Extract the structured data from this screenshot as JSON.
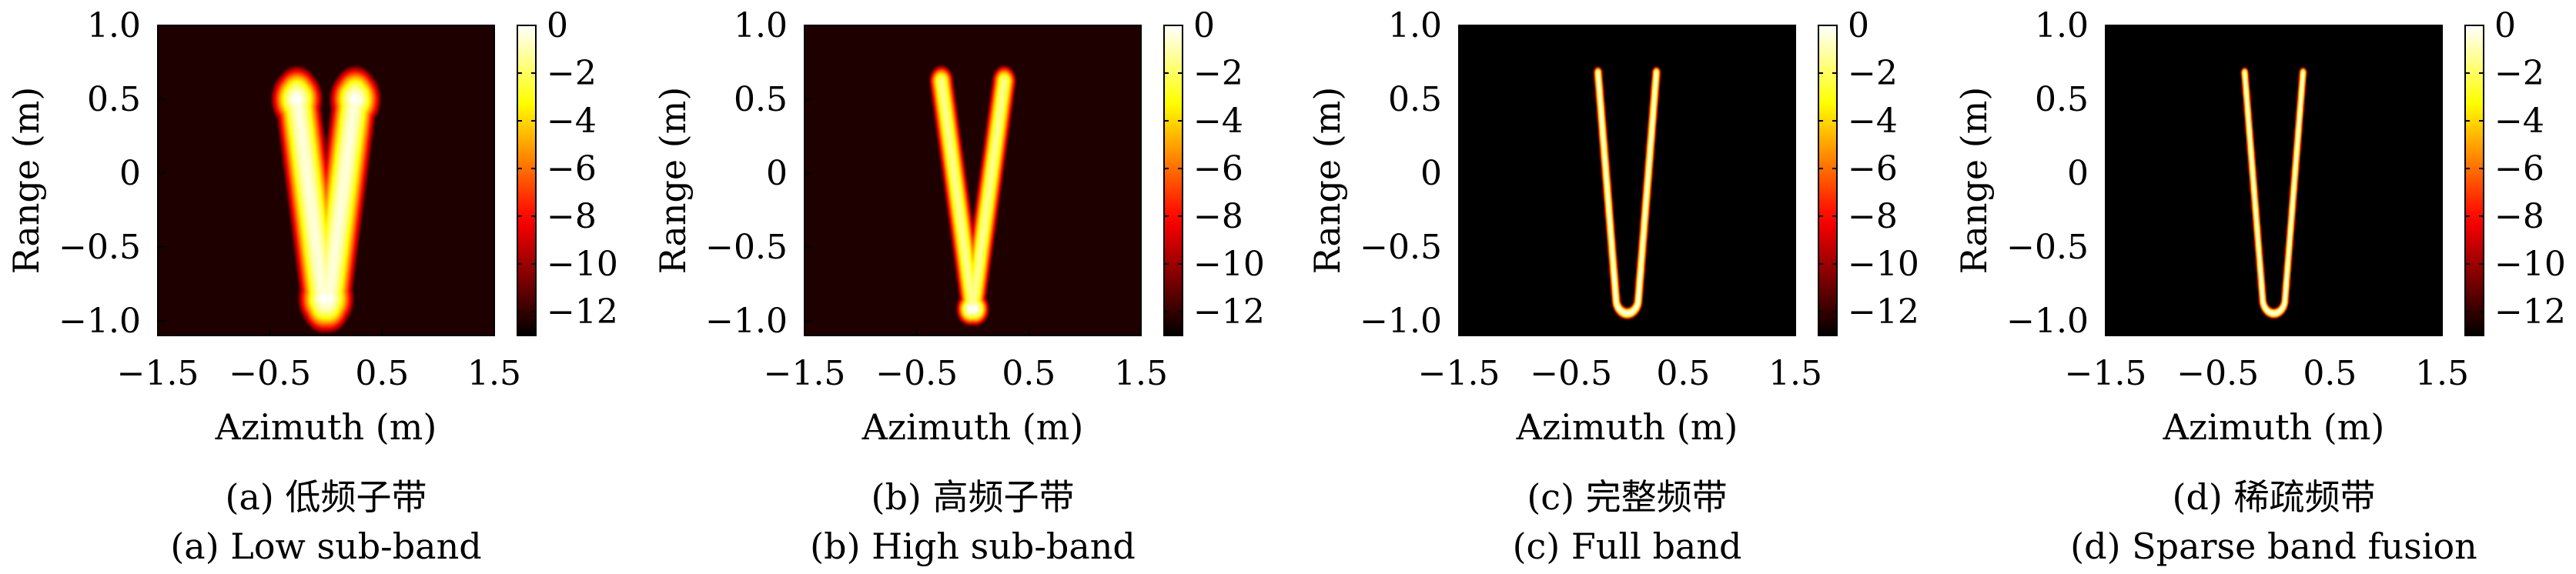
{
  "chart_data": [
    {
      "type": "heatmap",
      "caption_zh": "(a) 低频子带",
      "caption_en": "(a) Low sub-band",
      "xlabel": "Azimuth (m)",
      "ylabel": "Range (m)",
      "xlim": [
        -1.5,
        1.5
      ],
      "ylim": [
        -1.1,
        1.0
      ],
      "xticks": [
        "-1.5",
        "-0.5",
        "0.5",
        "1.5"
      ],
      "yticks": [
        "1.0",
        "0.5",
        "0",
        "-0.5",
        "-1.0"
      ],
      "colorbar": {
        "range": [
          -13,
          0
        ],
        "ticks": [
          "0",
          "-2",
          "-4",
          "-6",
          "-8",
          "-10",
          "-12"
        ]
      },
      "shape": {
        "half_width_top": 0.26,
        "half_width_bottom": 0.02,
        "y_top": 0.52,
        "y_bottom": -0.88,
        "line_sigma": 0.09,
        "peaks_y": [
          0.5,
          -0.85
        ]
      }
    },
    {
      "type": "heatmap",
      "caption_zh": "(b) 高频子带",
      "caption_en": "(b) High sub-band",
      "xlabel": "Azimuth (m)",
      "ylabel": "Range (m)",
      "xlim": [
        -1.5,
        1.5
      ],
      "ylim": [
        -1.1,
        1.0
      ],
      "xticks": [
        "-1.5",
        "-0.5",
        "0.5",
        "1.5"
      ],
      "yticks": [
        "1.0",
        "0.5",
        "0",
        "-0.5",
        "-1.0"
      ],
      "colorbar": {
        "range": [
          -13,
          0
        ],
        "ticks": [
          "0",
          "-2",
          "-4",
          "-6",
          "-8",
          "-10",
          "-12"
        ]
      },
      "shape": {
        "half_width_top": 0.28,
        "half_width_bottom": 0.0,
        "y_top": 0.62,
        "y_bottom": -0.92,
        "line_sigma": 0.05,
        "peaks_y": [
          -0.92
        ]
      }
    },
    {
      "type": "heatmap",
      "caption_zh": "(c) 完整频带",
      "caption_en": "(c) Full band",
      "xlabel": "Azimuth (m)",
      "ylabel": "Range (m)",
      "xlim": [
        -1.5,
        1.5
      ],
      "ylim": [
        -1.1,
        1.0
      ],
      "xticks": [
        "-1.5",
        "-0.5",
        "0.5",
        "1.5"
      ],
      "yticks": [
        "1.0",
        "0.5",
        "0",
        "-0.5",
        "-1.0"
      ],
      "colorbar": {
        "range": [
          -13,
          0
        ],
        "ticks": [
          "0",
          "-2",
          "-4",
          "-6",
          "-8",
          "-10",
          "-12"
        ]
      },
      "shape": {
        "half_width_top": 0.26,
        "half_width_bottom": 0.1,
        "y_top": 0.68,
        "y_bottom": -0.95,
        "line_sigma": 0.018,
        "peaks_y": []
      }
    },
    {
      "type": "heatmap",
      "caption_zh": "(d) 稀疏频带",
      "caption_en": "(d) Sparse band fusion",
      "xlabel": "Azimuth (m)",
      "ylabel": "Range (m)",
      "xlim": [
        -1.5,
        1.5
      ],
      "ylim": [
        -1.1,
        1.0
      ],
      "xticks": [
        "-1.5",
        "-0.5",
        "0.5",
        "1.5"
      ],
      "yticks": [
        "1.0",
        "0.5",
        "0",
        "-0.5",
        "-1.0"
      ],
      "colorbar": {
        "range": [
          -13,
          0
        ],
        "ticks": [
          "0",
          "-2",
          "-4",
          "-6",
          "-8",
          "-10",
          "-12"
        ]
      },
      "shape": {
        "half_width_top": 0.26,
        "half_width_bottom": 0.1,
        "y_top": 0.68,
        "y_bottom": -0.95,
        "line_sigma": 0.016,
        "peaks_y": []
      }
    }
  ]
}
